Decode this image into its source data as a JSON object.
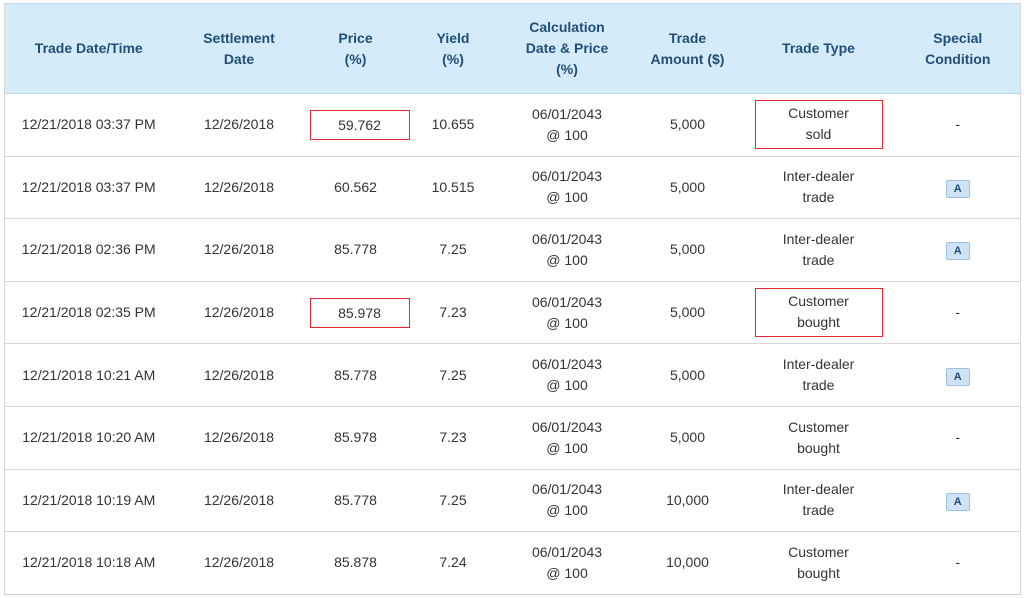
{
  "columns": [
    {
      "line1": "Trade Date/Time",
      "line2": "",
      "line3": ""
    },
    {
      "line1": "Settlement",
      "line2": "Date",
      "line3": ""
    },
    {
      "line1": "Price",
      "line2": "(%)",
      "line3": ""
    },
    {
      "line1": "Yield",
      "line2": "(%)",
      "line3": ""
    },
    {
      "line1": "Calculation",
      "line2": "Date & Price",
      "line3": "(%)"
    },
    {
      "line1": "Trade",
      "line2": "Amount ($)",
      "line3": ""
    },
    {
      "line1": "Trade Type",
      "line2": "",
      "line3": ""
    },
    {
      "line1": "Special",
      "line2": "Condition",
      "line3": ""
    }
  ],
  "rows": [
    {
      "trade_datetime": "12/21/2018 03:37 PM",
      "settlement_date": "12/26/2018",
      "price": "59.762",
      "yield": "10.655",
      "calc_date": "06/01/2043",
      "calc_price": "@ 100",
      "amount": "5,000",
      "type_line1": "Customer",
      "type_line2": "sold",
      "condition": "-"
    },
    {
      "trade_datetime": "12/21/2018 03:37 PM",
      "settlement_date": "12/26/2018",
      "price": "60.562",
      "yield": "10.515",
      "calc_date": "06/01/2043",
      "calc_price": "@ 100",
      "amount": "5,000",
      "type_line1": "Inter-dealer",
      "type_line2": "trade",
      "condition": "A"
    },
    {
      "trade_datetime": "12/21/2018 02:36 PM",
      "settlement_date": "12/26/2018",
      "price": "85.778",
      "yield": "7.25",
      "calc_date": "06/01/2043",
      "calc_price": "@ 100",
      "amount": "5,000",
      "type_line1": "Inter-dealer",
      "type_line2": "trade",
      "condition": "A"
    },
    {
      "trade_datetime": "12/21/2018 02:35 PM",
      "settlement_date": "12/26/2018",
      "price": "85.978",
      "yield": "7.23",
      "calc_date": "06/01/2043",
      "calc_price": "@ 100",
      "amount": "5,000",
      "type_line1": "Customer",
      "type_line2": "bought",
      "condition": "-"
    },
    {
      "trade_datetime": "12/21/2018 10:21 AM",
      "settlement_date": "12/26/2018",
      "price": "85.778",
      "yield": "7.25",
      "calc_date": "06/01/2043",
      "calc_price": "@ 100",
      "amount": "5,000",
      "type_line1": "Inter-dealer",
      "type_line2": "trade",
      "condition": "A"
    },
    {
      "trade_datetime": "12/21/2018 10:20 AM",
      "settlement_date": "12/26/2018",
      "price": "85.978",
      "yield": "7.23",
      "calc_date": "06/01/2043",
      "calc_price": "@ 100",
      "amount": "5,000",
      "type_line1": "Customer",
      "type_line2": "bought",
      "condition": "-"
    },
    {
      "trade_datetime": "12/21/2018 10:19 AM",
      "settlement_date": "12/26/2018",
      "price": "85.778",
      "yield": "7.25",
      "calc_date": "06/01/2043",
      "calc_price": "@ 100",
      "amount": "10,000",
      "type_line1": "Inter-dealer",
      "type_line2": "trade",
      "condition": "A"
    },
    {
      "trade_datetime": "12/21/2018 10:18 AM",
      "settlement_date": "12/26/2018",
      "price": "85.878",
      "yield": "7.24",
      "calc_date": "06/01/2043",
      "calc_price": "@ 100",
      "amount": "10,000",
      "type_line1": "Customer",
      "type_line2": "bought",
      "condition": "-"
    }
  ],
  "colors": {
    "header_bg": "#d6ebfa",
    "header_text": "#1f4e79",
    "highlight_border": "#e0282e",
    "badge_bg": "#cfe3f5"
  }
}
